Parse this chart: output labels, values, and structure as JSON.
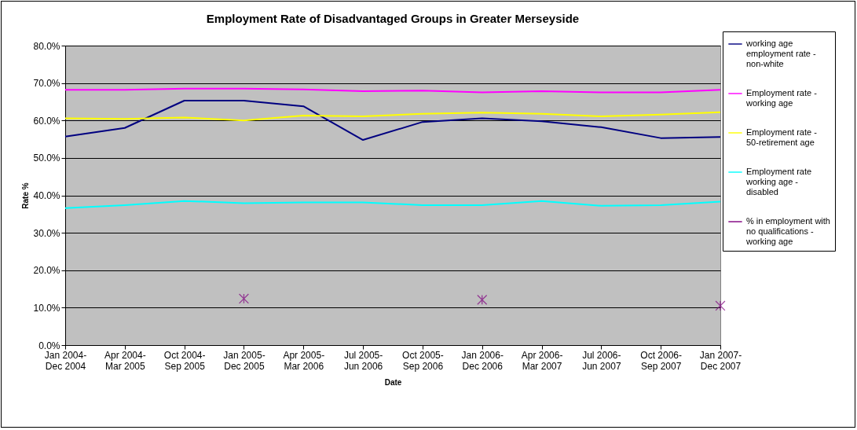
{
  "chart_data": {
    "type": "line",
    "title": "Employment Rate of Disadvantaged Groups in Greater Merseyside",
    "xlabel": "Date",
    "ylabel": "Rate %",
    "categories": [
      "Jan 2004-\nDec 2004",
      "Apr 2004-\nMar 2005",
      "Oct 2004-\nSep 2005",
      "Jan 2005-\nDec 2005",
      "Apr 2005-\nMar 2006",
      "Jul 2005-\nJun 2006",
      "Oct 2005-\nSep 2006",
      "Jan 2006-\nDec 2006",
      "Apr 2006-\nMar 2007",
      "Jul 2006-\nJun 2007",
      "Oct 2006-\nSep 2007",
      "Jan 2007-\nDec 2007"
    ],
    "series": [
      {
        "name": "working age employment rate - non-white",
        "color": "#000080",
        "values": [
          55.7,
          58.0,
          65.3,
          65.3,
          63.8,
          54.8,
          59.6,
          60.6,
          59.8,
          58.2,
          55.3,
          55.6
        ]
      },
      {
        "name": "Employment rate - working age",
        "color": "#ff00ff",
        "values": [
          68.2,
          68.2,
          68.5,
          68.5,
          68.3,
          67.8,
          68.0,
          67.5,
          67.8,
          67.5,
          67.5,
          68.2
        ]
      },
      {
        "name": "Employment rate - 50-retirement age",
        "color": "#ffff00",
        "values": [
          60.6,
          60.4,
          60.8,
          60.0,
          61.3,
          61.1,
          61.8,
          62.1,
          61.8,
          61.1,
          61.6,
          62.2
        ]
      },
      {
        "name": "Employment rate working age - disabled",
        "color": "#00ffff",
        "values": [
          36.6,
          37.4,
          38.5,
          37.9,
          38.1,
          38.1,
          37.4,
          37.4,
          38.5,
          37.2,
          37.4,
          38.3
        ]
      },
      {
        "name": "% in employment with no qualifications - working age",
        "color": "#800080",
        "type": "scatter",
        "marker": "cross",
        "values": [
          null,
          null,
          null,
          12.4,
          null,
          null,
          null,
          12.1,
          null,
          null,
          null,
          10.5
        ]
      }
    ],
    "ylim": [
      0,
      80
    ],
    "yticks": [
      {
        "value": 0,
        "label": "0.0%"
      },
      {
        "value": 10,
        "label": "10.0%"
      },
      {
        "value": 20,
        "label": "20.0%"
      },
      {
        "value": 30,
        "label": "30.0%"
      },
      {
        "value": 40,
        "label": "40.0%"
      },
      {
        "value": 50,
        "label": "50.0%"
      },
      {
        "value": 60,
        "label": "60.0%"
      },
      {
        "value": 70,
        "label": "70.0%"
      },
      {
        "value": 80,
        "label": "80.0%"
      }
    ],
    "grid": "y",
    "legend": "right"
  }
}
